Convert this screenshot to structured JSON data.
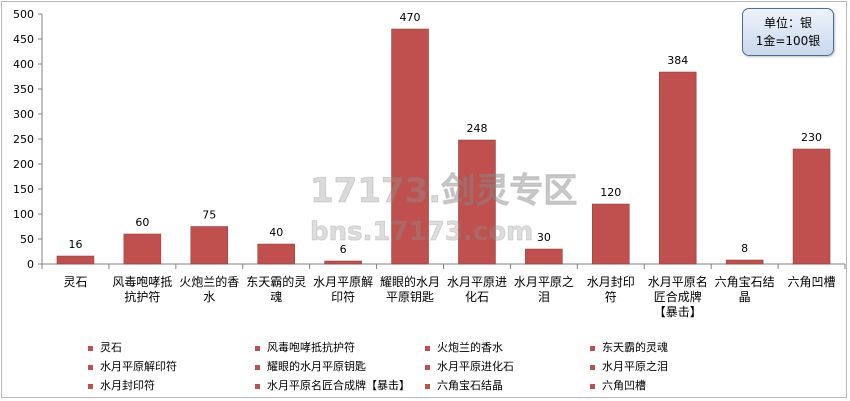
{
  "unit_box": {
    "line1": "单位：银",
    "line2": "1金=100银"
  },
  "watermark": {
    "line1": "17173.剑灵专区",
    "line2": "bns.17173.com"
  },
  "colors": {
    "bar": "#c0504d",
    "bar_edge": "#8c3836",
    "grid": "#d9d9d9",
    "axis": "#808080"
  },
  "chart_data": {
    "type": "bar",
    "ylim": [
      0,
      500
    ],
    "yticks": [
      0,
      50,
      100,
      150,
      200,
      250,
      300,
      350,
      400,
      450,
      500
    ],
    "grid": false,
    "legend_position": "bottom",
    "categories": [
      "灵石",
      "风毒咆哮抵抗护符",
      "火炮兰的香水",
      "东天霸的灵魂",
      "水月平原解印符",
      "耀眼的水月平原钥匙",
      "水月平原进化石",
      "水月平原之泪",
      "水月封印符",
      "水月平原名匠合成牌【暴击】",
      "六角宝石结晶",
      "六角凹槽"
    ],
    "category_label_lines": [
      [
        "灵石"
      ],
      [
        "风毒咆哮抵",
        "抗护符"
      ],
      [
        "火炮兰的香",
        "水"
      ],
      [
        "东天霸的灵",
        "魂"
      ],
      [
        "水月平原解",
        "印符"
      ],
      [
        "耀眼的水月",
        "平原钥匙"
      ],
      [
        "水月平原进",
        "化石"
      ],
      [
        "水月平原之",
        "泪"
      ],
      [
        "水月封印",
        "符"
      ],
      [
        "水月平原名",
        "匠合成牌",
        "【暴击】"
      ],
      [
        "六角宝石结",
        "晶"
      ],
      [
        "六角凹槽"
      ]
    ],
    "values": [
      16,
      60,
      75,
      40,
      6,
      470,
      248,
      30,
      120,
      384,
      8,
      230
    ],
    "data_labels": [
      "16",
      "60",
      "75",
      "40",
      "6",
      "470",
      "248",
      "30",
      "120",
      "384",
      "8",
      "230"
    ],
    "legend_entries": [
      "灵石",
      "风毒咆哮抵抗护符",
      "火炮兰的香水",
      "东天霸的灵魂",
      "水月平原解印符",
      "耀眼的水月平原钥匙",
      "水月平原进化石",
      "水月平原之泪",
      "水月封印符",
      "水月平原名匠合成牌【暴击】",
      "六角宝石结晶",
      "六角凹槽"
    ]
  }
}
